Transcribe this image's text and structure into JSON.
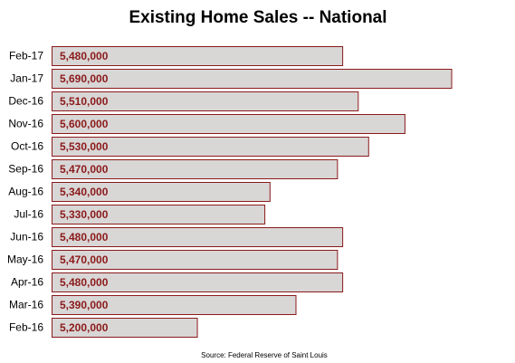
{
  "chart_data": {
    "type": "bar",
    "orientation": "horizontal",
    "title": "Existing Home Sales -- National",
    "categories": [
      "Feb-17",
      "Jan-17",
      "Dec-16",
      "Nov-16",
      "Oct-16",
      "Sep-16",
      "Aug-16",
      "Jul-16",
      "Jun-16",
      "May-16",
      "Apr-16",
      "Mar-16",
      "Feb-16"
    ],
    "values": [
      5480000,
      5690000,
      5510000,
      5600000,
      5530000,
      5470000,
      5340000,
      5330000,
      5480000,
      5470000,
      5480000,
      5390000,
      5200000
    ],
    "value_labels": [
      "5,480,000",
      "5,690,000",
      "5,510,000",
      "5,600,000",
      "5,530,000",
      "5,470,000",
      "5,340,000",
      "5,330,000",
      "5,480,000",
      "5,470,000",
      "5,480,000",
      "5,390,000",
      "5,200,000"
    ],
    "xlabel": "",
    "ylabel": "",
    "xlim": [
      4920000,
      5710000
    ],
    "grid": false,
    "legend": "none",
    "note": "Source: Federal Reserve of Saint Louis",
    "colors": {
      "bar_fill": "#d9d6d6",
      "bar_stroke": "#8b1a1a",
      "value_label": "#8b1a1a"
    }
  }
}
